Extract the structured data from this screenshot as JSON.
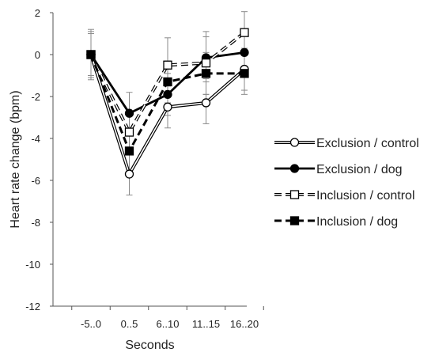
{
  "chart_data": {
    "type": "line",
    "title": "",
    "xlabel": "Seconds",
    "ylabel": "Heart rate change (bpm)",
    "categories": [
      "-5..0",
      "0..5",
      "6..10",
      "11..15",
      "16..20"
    ],
    "ylim": [
      -12,
      2
    ],
    "yticks": [
      2,
      0,
      -2,
      -4,
      -6,
      -8,
      -10,
      -12
    ],
    "grid": false,
    "legend_position": "right",
    "series": [
      {
        "name": "Exclusion / control",
        "values": [
          0,
          -5.7,
          -2.5,
          -2.3,
          -0.7
        ],
        "error": [
          1.1,
          1.0,
          1.0,
          1.0,
          1.0
        ],
        "line_style": "double",
        "marker": "circle",
        "marker_fill": "#ffffff",
        "color": "#000000"
      },
      {
        "name": "Exclusion / dog",
        "values": [
          0,
          -2.8,
          -1.9,
          -0.15,
          0.1
        ],
        "error": [
          1.0,
          1.0,
          1.0,
          1.0,
          1.0
        ],
        "line_style": "solid",
        "marker": "circle",
        "marker_fill": "#000000",
        "color": "#000000"
      },
      {
        "name": "Inclusion / control",
        "values": [
          0,
          -3.7,
          -0.5,
          -0.4,
          1.05
        ],
        "error": [
          1.2,
          1.0,
          1.3,
          1.5,
          1.0
        ],
        "line_style": "dashed-double",
        "marker": "square",
        "marker_fill": "#ffffff",
        "color": "#000000"
      },
      {
        "name": "Inclusion / dog",
        "values": [
          0,
          -4.6,
          -1.3,
          -0.9,
          -0.9
        ],
        "error": [
          1.0,
          1.0,
          1.0,
          1.0,
          1.0
        ],
        "line_style": "dashed",
        "marker": "square",
        "marker_fill": "#000000",
        "color": "#000000"
      }
    ]
  }
}
